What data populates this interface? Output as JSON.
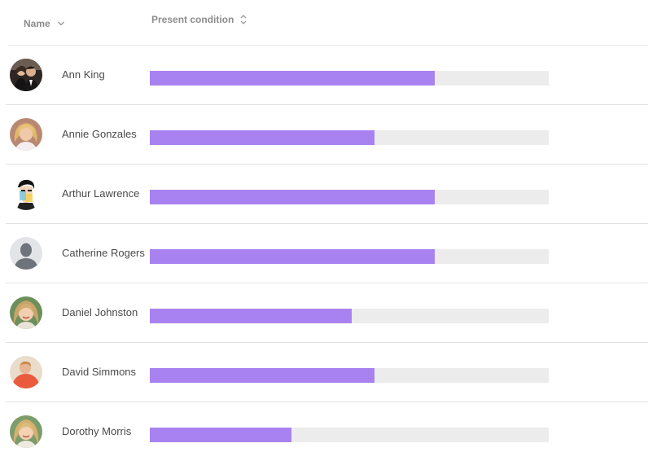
{
  "columns": {
    "name": "Name",
    "condition": "Present condition"
  },
  "colors": {
    "bar_fill": "#a882f0",
    "bar_track": "#ececec"
  },
  "rows": [
    {
      "name": "Ann King",
      "condition": 0.714,
      "avatar": "couple-photo"
    },
    {
      "name": "Annie Gonzales",
      "condition": 0.563,
      "avatar": "blonde-woman-photo"
    },
    {
      "name": "Arthur Lawrence",
      "condition": 0.714,
      "avatar": "painted-portrait"
    },
    {
      "name": "Catherine Rogers",
      "condition": 0.714,
      "avatar": "default-person-silhouette"
    },
    {
      "name": "Daniel Johnston",
      "condition": 0.506,
      "avatar": "smiling-woman-photo"
    },
    {
      "name": "David Simmons",
      "condition": 0.563,
      "avatar": "red-shirt-photo"
    },
    {
      "name": "Dorothy Morris",
      "condition": 0.355,
      "avatar": "blonde-woman-photo-2"
    }
  ]
}
